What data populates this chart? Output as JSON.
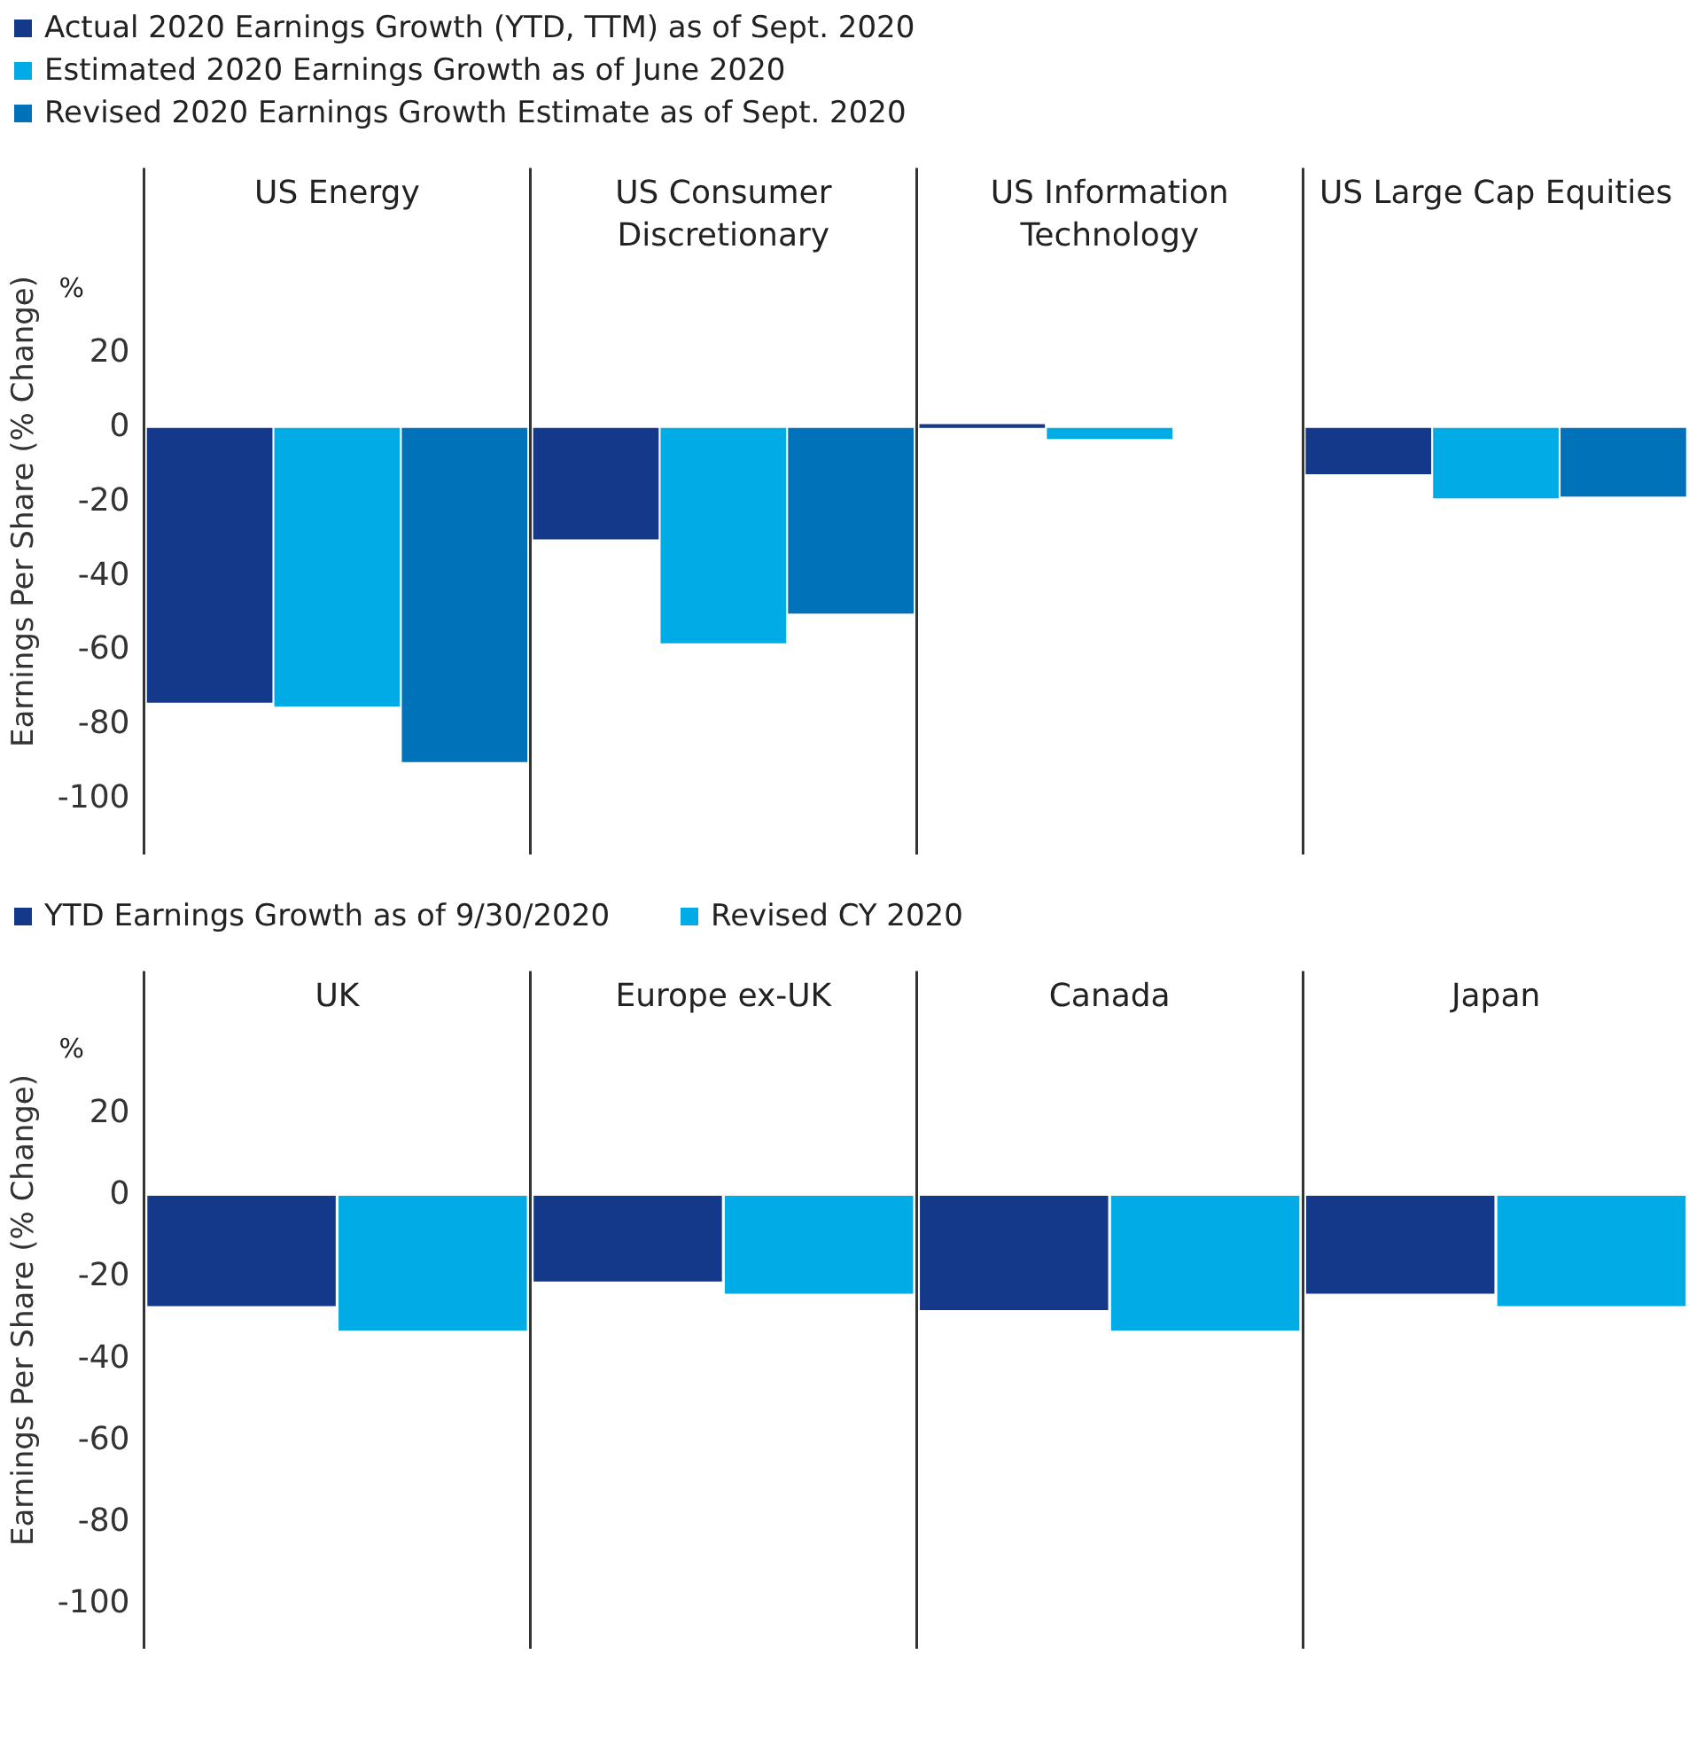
{
  "chart_data": [
    {
      "type": "bar",
      "ylabel": "Earnings Per Share (% Change)",
      "annotations": [
        "%"
      ],
      "categories": [
        "US Energy",
        "US Consumer Discretionary",
        "US Information Technology",
        "US Large Cap Equities"
      ],
      "series": [
        {
          "name": "Actual 2020 Earnings Growth (YTD, TTM) as of Sept. 2020",
          "color": "#15398a",
          "values": [
            -74,
            -30,
            1,
            -12.5
          ]
        },
        {
          "name": "Estimated 2020 Earnings Growth as of June 2020",
          "color": "#00abe6",
          "values": [
            -75,
            -58,
            -3,
            -19
          ]
        },
        {
          "name": "Revised 2020 Earnings Growth Estimate as of Sept. 2020",
          "color": "#0072b9",
          "values": [
            -90,
            -50,
            0,
            -18.5
          ]
        }
      ],
      "ylim": [
        -115,
        70
      ],
      "yticks": [
        20,
        0,
        -20,
        -40,
        -60,
        -80,
        -100
      ],
      "grid": "x",
      "legend": "top"
    },
    {
      "type": "bar",
      "ylabel": "Earnings Per Share (% Change)",
      "annotations": [
        "%"
      ],
      "categories": [
        "UK",
        "Europe ex-UK",
        "Canada",
        "Japan"
      ],
      "series": [
        {
          "name": "YTD Earnings Growth as of 9/30/2020",
          "color": "#15398a",
          "values": [
            -27,
            -21,
            -28,
            -24
          ]
        },
        {
          "name": "Revised CY 2020",
          "color": "#00abe6",
          "values": [
            -33,
            -24,
            -33,
            -27
          ]
        }
      ],
      "ylim": [
        -111,
        55
      ],
      "yticks": [
        20,
        0,
        -20,
        -40,
        -60,
        -80,
        -100
      ],
      "grid": "x",
      "legend": "top"
    }
  ]
}
